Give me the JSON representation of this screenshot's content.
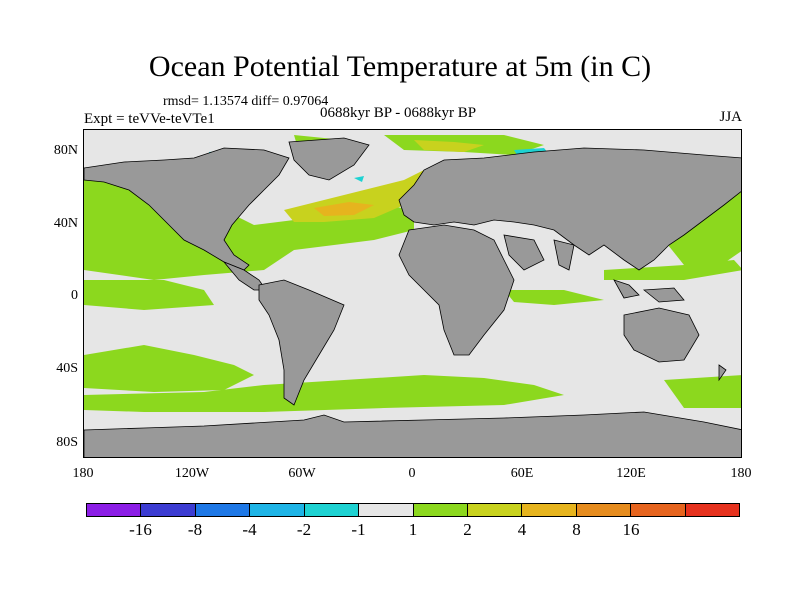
{
  "title": "Ocean Potential Temperature at 5m (in C)",
  "stats": "rmsd= 1.13574 diff= 0.97064",
  "expt": "Expt = teVVe-teVTe1",
  "period": "0688kyr BP - 0688kyr BP",
  "season": "JJA",
  "lat_labels": [
    "80N",
    "40N",
    "0",
    "40S",
    "80S"
  ],
  "lon_labels": [
    "180",
    "120W",
    "60W",
    "0",
    "60E",
    "120E",
    "180"
  ],
  "colorbar": {
    "colors": [
      "#8c1ee6",
      "#3c3cd2",
      "#1e78e6",
      "#1eb4e6",
      "#1ed2d2",
      "#e6e6e6",
      "#8cd81e",
      "#c8d21e",
      "#e6b41e",
      "#e68c1e",
      "#e6641e",
      "#e6321e"
    ],
    "labels": [
      "-16",
      "-8",
      "-4",
      "-2",
      "-1",
      "1",
      "2",
      "4",
      "8",
      "16"
    ]
  },
  "colors": {
    "land": "#999999",
    "neutral": "#e6e6e6",
    "warm1": "#8cd81e",
    "warm2": "#c8d21e",
    "warm3": "#e6b41e",
    "cool1": "#1ed2d2"
  }
}
